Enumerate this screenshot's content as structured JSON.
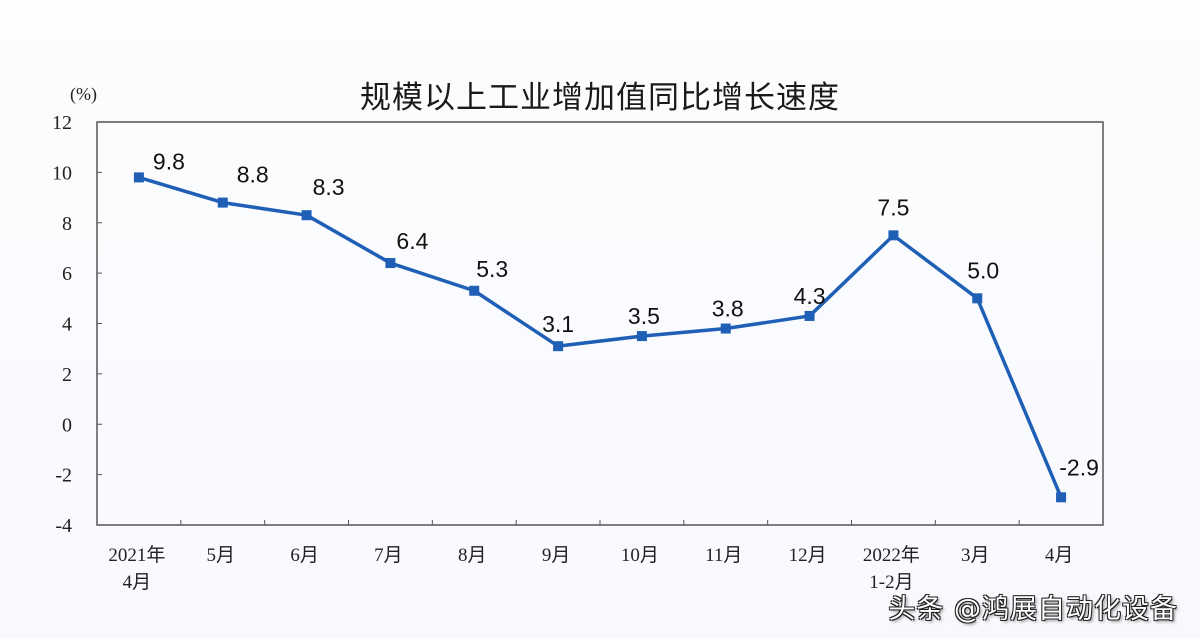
{
  "title": "规模以上工业增加值同比增长速度",
  "unit_label": "(%)",
  "watermark": "头条 @鸿展自动化设备",
  "colors": {
    "line": "#1f5fb5",
    "axis": "#555555",
    "text": "#222222"
  },
  "chart_data": {
    "type": "line",
    "title": "规模以上工业增加值同比增长速度",
    "xlabel": "",
    "ylabel": "(%)",
    "categories": [
      "2021年\n4月",
      "5月",
      "6月",
      "7月",
      "8月",
      "9月",
      "10月",
      "11月",
      "12月",
      "2022年\n1-2月",
      "3月",
      "4月"
    ],
    "category_lines": [
      [
        "2021年",
        "4月"
      ],
      [
        "5月"
      ],
      [
        "6月"
      ],
      [
        "7月"
      ],
      [
        "8月"
      ],
      [
        "9月"
      ],
      [
        "10月"
      ],
      [
        "11月"
      ],
      [
        "12月"
      ],
      [
        "2022年",
        "1-2月"
      ],
      [
        "3月"
      ],
      [
        "4月"
      ]
    ],
    "series": [
      {
        "name": "规模以上工业增加值同比增长速度",
        "values": [
          9.8,
          8.8,
          8.3,
          6.4,
          5.3,
          3.1,
          3.5,
          3.8,
          4.3,
          7.5,
          5.0,
          -2.9
        ]
      }
    ],
    "data_labels": [
      "9.8",
      "8.8",
      "8.3",
      "6.4",
      "5.3",
      "3.1",
      "3.5",
      "3.8",
      "4.3",
      "7.5",
      "5.0",
      "-2.9"
    ],
    "ylim": [
      -4,
      12
    ],
    "yticks": [
      12,
      10,
      8,
      6,
      4,
      2,
      0,
      -2,
      -4
    ],
    "grid": false,
    "legend": "none"
  }
}
